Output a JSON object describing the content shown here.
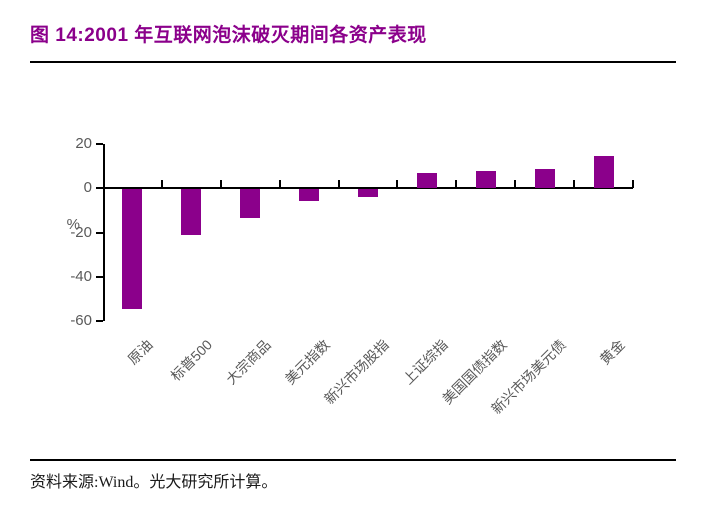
{
  "header": {
    "title": "图 14:2001 年互联网泡沫破灭期间各资产表现"
  },
  "chart_data": {
    "type": "bar",
    "title": "2001 年互联网泡沫破灭期间各资产表现",
    "categories": [
      "原油",
      "标普500",
      "大宗商品",
      "美元指数",
      "新兴市场股指",
      "上证综指",
      "美国国债指数",
      "新兴市场美元债",
      "黄金"
    ],
    "values": [
      -54,
      -20.5,
      -13,
      -5.5,
      -3.5,
      7,
      8,
      8.5,
      14.5
    ],
    "xlabel": "",
    "ylabel": "%",
    "ylim": [
      -60,
      20
    ],
    "yticks": [
      20,
      0,
      -20,
      -40,
      -60
    ],
    "grid": false,
    "legend": false,
    "bar_color": "#8B008B",
    "axis_color": "#000000",
    "axis_text_color": "#595959"
  },
  "source": {
    "text": "资料来源:Wind。光大研究所计算。"
  },
  "colors": {
    "title": "#8B008B",
    "rule": "#000000"
  }
}
